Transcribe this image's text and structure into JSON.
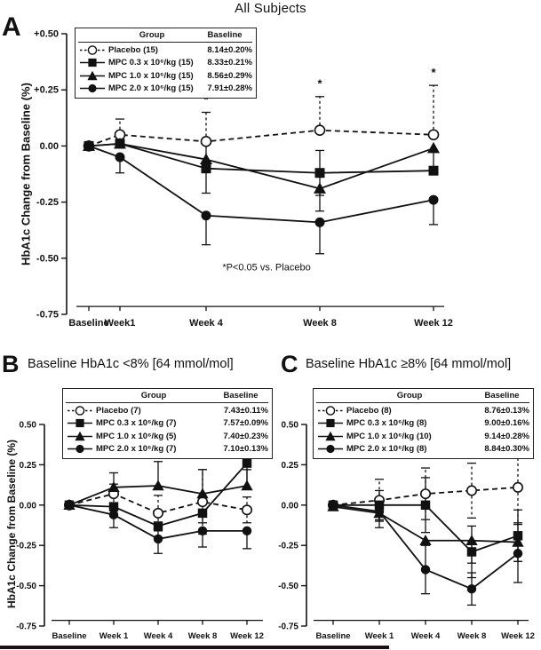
{
  "figure": {
    "title": "All Subjects",
    "background": "#ffffff",
    "ink": "#111111",
    "legend_headers": {
      "group": "Group",
      "baseline": "Baseline"
    }
  },
  "chart_data": [
    {
      "panel_label": "A",
      "type": "line",
      "title": "All Subjects",
      "ylabel": "HbA1c  Change from Baseline (%)",
      "x_weeks": [
        0,
        1,
        4,
        8,
        12
      ],
      "categories": [
        "Baseline",
        "Week1",
        "Week 4",
        "Week 8",
        "Week 12"
      ],
      "ytick_values": [
        0.5,
        0.25,
        0,
        -0.25,
        -0.5,
        -0.75
      ],
      "ytick_labels": [
        "+0.50",
        "+0.25",
        "0.00",
        "-0.25",
        "-0.50",
        "-0.75"
      ],
      "ylim": [
        -0.75,
        0.55
      ],
      "note": "*P<0.05 vs. Placebo",
      "stars": [
        {
          "x_index": 2,
          "y": 0.19
        },
        {
          "x_index": 3,
          "y": 0.26
        },
        {
          "x_index": 4,
          "y": 0.31
        }
      ],
      "series": [
        {
          "name": "Placebo (15)",
          "baseline": "8.14±0.20%",
          "marker": "circle-open",
          "line": "dashed",
          "err_dir": "up",
          "values": [
            0.0,
            0.05,
            0.02,
            0.07,
            0.05
          ],
          "err": [
            0,
            0.07,
            0.13,
            0.15,
            0.22
          ]
        },
        {
          "name": "MPC 0.3 x 10⁶/kg (15)",
          "baseline": "8.33±0.21%",
          "marker": "square",
          "line": "solid",
          "err_dir": "both",
          "values": [
            0.0,
            0.01,
            -0.1,
            -0.12,
            -0.11
          ],
          "err": [
            0,
            0,
            0.11,
            0.1,
            0
          ]
        },
        {
          "name": "MPC 1.0 x 10⁶/kg (15)",
          "baseline": "8.56±0.29%",
          "marker": "triangle",
          "line": "solid",
          "err_dir": "down",
          "values": [
            0.0,
            0.01,
            -0.06,
            -0.19,
            -0.01
          ],
          "err": [
            0,
            0,
            0,
            0.1,
            0.11
          ]
        },
        {
          "name": "MPC 2.0 x 10⁶/kg (15)",
          "baseline": "7.91±0.28%",
          "marker": "circle",
          "line": "solid",
          "err_dir": "down",
          "values": [
            0.0,
            -0.05,
            -0.31,
            -0.34,
            -0.24
          ],
          "err": [
            0,
            0.07,
            0.13,
            0.14,
            0.11
          ]
        }
      ]
    },
    {
      "panel_label": "B",
      "type": "line",
      "title": "Baseline HbA1c <8% [64 mmol/mol]",
      "ylabel": "HbA1c Change from Baseline (%)",
      "x_weeks": [
        0,
        1,
        4,
        8,
        12
      ],
      "categories": [
        "Baseline",
        "Week 1",
        "Week 4",
        "Week 8",
        "Week 12"
      ],
      "ytick_values": [
        0.5,
        0.25,
        0,
        -0.25,
        -0.5,
        -0.75
      ],
      "ytick_labels": [
        "0.50",
        "0.25",
        "0.00",
        "-0.25",
        "-0.50",
        "-0.75"
      ],
      "ylim": [
        -0.75,
        0.55
      ],
      "note": null,
      "stars": [],
      "series": [
        {
          "name": "Placebo (7)",
          "baseline": "7.43±0.11%",
          "marker": "circle-open",
          "line": "dashed",
          "err_dir": "both",
          "values": [
            0.0,
            0.07,
            -0.05,
            0.02,
            -0.03
          ],
          "err": [
            0,
            0.06,
            0.11,
            0.2,
            0.08
          ]
        },
        {
          "name": "MPC 0.3 x 10⁶/kg (7)",
          "baseline": "7.57±0.09%",
          "marker": "square",
          "line": "solid",
          "err_dir": "down",
          "values": [
            0.0,
            -0.01,
            -0.13,
            -0.05,
            0.26
          ],
          "err": [
            0,
            0.05,
            0.07,
            0.06,
            0.16
          ]
        },
        {
          "name": "MPC 1.0 x 10⁶/kg (5)",
          "baseline": "7.40±0.23%",
          "marker": "triangle",
          "line": "solid",
          "err_dir": "up",
          "values": [
            0.0,
            0.11,
            0.12,
            0.07,
            0.12
          ],
          "err": [
            0,
            0.09,
            0.15,
            0.15,
            0.1
          ]
        },
        {
          "name": "MPC 2.0 x 10⁶/kg (7)",
          "baseline": "7.10±0.13%",
          "marker": "circle",
          "line": "solid",
          "err_dir": "down",
          "values": [
            0.0,
            -0.06,
            -0.21,
            -0.16,
            -0.16
          ],
          "err": [
            0,
            0.08,
            0.09,
            0.1,
            0.11
          ]
        }
      ]
    },
    {
      "panel_label": "C",
      "type": "line",
      "title": "Baseline HbA1c ≥8% [64 mmol/mol]",
      "ylabel": "",
      "x_weeks": [
        0,
        1,
        4,
        8,
        12
      ],
      "categories": [
        "Baseline",
        "Week 1",
        "Week 4",
        "Week 8",
        "Week 12"
      ],
      "ytick_values": [
        0.5,
        0.25,
        0,
        -0.25,
        -0.5,
        -0.75
      ],
      "ytick_labels": [
        "0.50",
        "0.25",
        "0.00",
        "-0.25",
        "-0.50",
        "-0.75"
      ],
      "ylim": [
        -0.75,
        0.55
      ],
      "note": null,
      "stars": [],
      "series": [
        {
          "name": "Placebo (8)",
          "baseline": "8.76±0.13%",
          "marker": "circle-open",
          "line": "dashed",
          "err_dir": "both",
          "values": [
            0.0,
            0.03,
            0.07,
            0.09,
            0.11
          ],
          "err": [
            0,
            0.13,
            0.16,
            0.17,
            0.22
          ]
        },
        {
          "name": "MPC 0.3 x 10⁶/kg (8)",
          "baseline": "9.00±0.16%",
          "marker": "square",
          "line": "solid",
          "err_dir": "both",
          "values": [
            0.0,
            0.0,
            0.0,
            -0.29,
            -0.19
          ],
          "err": [
            0,
            0.09,
            0.17,
            0.16,
            0.16
          ]
        },
        {
          "name": "MPC 1.0 x 10⁶/kg (10)",
          "baseline": "9.14±0.28%",
          "marker": "triangle",
          "line": "solid",
          "err_dir": "down",
          "values": [
            -0.01,
            -0.05,
            -0.22,
            -0.22,
            -0.23
          ],
          "err": [
            0,
            0.09,
            0,
            0.14,
            0.12
          ]
        },
        {
          "name": "MPC 2.0 x 10⁶/kg (8)",
          "baseline": "8.84±0.30%",
          "marker": "circle",
          "line": "solid",
          "err_dir": "both",
          "values": [
            0.0,
            -0.04,
            -0.4,
            -0.52,
            -0.3
          ],
          "err": [
            0,
            0.06,
            0.15,
            0.1,
            0.18
          ]
        }
      ]
    }
  ]
}
